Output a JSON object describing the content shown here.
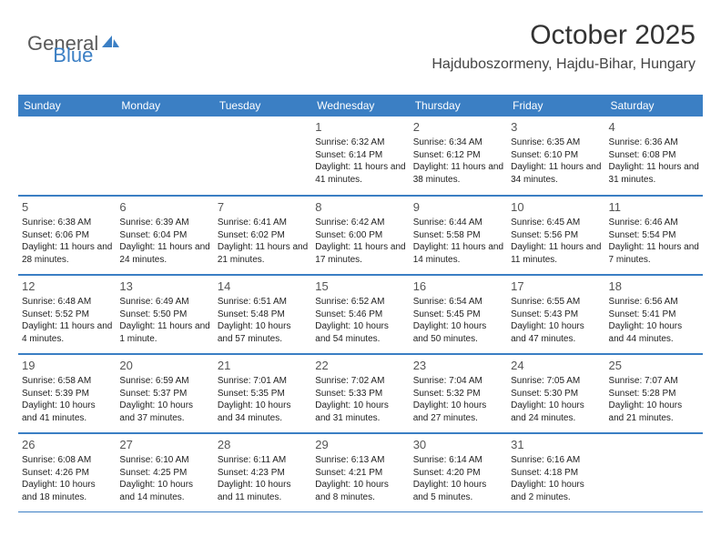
{
  "logo": {
    "part1": "General",
    "part2": "Blue"
  },
  "title": "October 2025",
  "location": "Hajduboszormeny, Hajdu-Bihar, Hungary",
  "header_bg": "#3b7fc4",
  "border_color": "#3b7fc4",
  "dayNames": [
    "Sunday",
    "Monday",
    "Tuesday",
    "Wednesday",
    "Thursday",
    "Friday",
    "Saturday"
  ],
  "weeks": [
    [
      {
        "n": "",
        "sr": "",
        "ss": "",
        "dl": ""
      },
      {
        "n": "",
        "sr": "",
        "ss": "",
        "dl": ""
      },
      {
        "n": "",
        "sr": "",
        "ss": "",
        "dl": ""
      },
      {
        "n": "1",
        "sr": "Sunrise: 6:32 AM",
        "ss": "Sunset: 6:14 PM",
        "dl": "Daylight: 11 hours and 41 minutes."
      },
      {
        "n": "2",
        "sr": "Sunrise: 6:34 AM",
        "ss": "Sunset: 6:12 PM",
        "dl": "Daylight: 11 hours and 38 minutes."
      },
      {
        "n": "3",
        "sr": "Sunrise: 6:35 AM",
        "ss": "Sunset: 6:10 PM",
        "dl": "Daylight: 11 hours and 34 minutes."
      },
      {
        "n": "4",
        "sr": "Sunrise: 6:36 AM",
        "ss": "Sunset: 6:08 PM",
        "dl": "Daylight: 11 hours and 31 minutes."
      }
    ],
    [
      {
        "n": "5",
        "sr": "Sunrise: 6:38 AM",
        "ss": "Sunset: 6:06 PM",
        "dl": "Daylight: 11 hours and 28 minutes."
      },
      {
        "n": "6",
        "sr": "Sunrise: 6:39 AM",
        "ss": "Sunset: 6:04 PM",
        "dl": "Daylight: 11 hours and 24 minutes."
      },
      {
        "n": "7",
        "sr": "Sunrise: 6:41 AM",
        "ss": "Sunset: 6:02 PM",
        "dl": "Daylight: 11 hours and 21 minutes."
      },
      {
        "n": "8",
        "sr": "Sunrise: 6:42 AM",
        "ss": "Sunset: 6:00 PM",
        "dl": "Daylight: 11 hours and 17 minutes."
      },
      {
        "n": "9",
        "sr": "Sunrise: 6:44 AM",
        "ss": "Sunset: 5:58 PM",
        "dl": "Daylight: 11 hours and 14 minutes."
      },
      {
        "n": "10",
        "sr": "Sunrise: 6:45 AM",
        "ss": "Sunset: 5:56 PM",
        "dl": "Daylight: 11 hours and 11 minutes."
      },
      {
        "n": "11",
        "sr": "Sunrise: 6:46 AM",
        "ss": "Sunset: 5:54 PM",
        "dl": "Daylight: 11 hours and 7 minutes."
      }
    ],
    [
      {
        "n": "12",
        "sr": "Sunrise: 6:48 AM",
        "ss": "Sunset: 5:52 PM",
        "dl": "Daylight: 11 hours and 4 minutes."
      },
      {
        "n": "13",
        "sr": "Sunrise: 6:49 AM",
        "ss": "Sunset: 5:50 PM",
        "dl": "Daylight: 11 hours and 1 minute."
      },
      {
        "n": "14",
        "sr": "Sunrise: 6:51 AM",
        "ss": "Sunset: 5:48 PM",
        "dl": "Daylight: 10 hours and 57 minutes."
      },
      {
        "n": "15",
        "sr": "Sunrise: 6:52 AM",
        "ss": "Sunset: 5:46 PM",
        "dl": "Daylight: 10 hours and 54 minutes."
      },
      {
        "n": "16",
        "sr": "Sunrise: 6:54 AM",
        "ss": "Sunset: 5:45 PM",
        "dl": "Daylight: 10 hours and 50 minutes."
      },
      {
        "n": "17",
        "sr": "Sunrise: 6:55 AM",
        "ss": "Sunset: 5:43 PM",
        "dl": "Daylight: 10 hours and 47 minutes."
      },
      {
        "n": "18",
        "sr": "Sunrise: 6:56 AM",
        "ss": "Sunset: 5:41 PM",
        "dl": "Daylight: 10 hours and 44 minutes."
      }
    ],
    [
      {
        "n": "19",
        "sr": "Sunrise: 6:58 AM",
        "ss": "Sunset: 5:39 PM",
        "dl": "Daylight: 10 hours and 41 minutes."
      },
      {
        "n": "20",
        "sr": "Sunrise: 6:59 AM",
        "ss": "Sunset: 5:37 PM",
        "dl": "Daylight: 10 hours and 37 minutes."
      },
      {
        "n": "21",
        "sr": "Sunrise: 7:01 AM",
        "ss": "Sunset: 5:35 PM",
        "dl": "Daylight: 10 hours and 34 minutes."
      },
      {
        "n": "22",
        "sr": "Sunrise: 7:02 AM",
        "ss": "Sunset: 5:33 PM",
        "dl": "Daylight: 10 hours and 31 minutes."
      },
      {
        "n": "23",
        "sr": "Sunrise: 7:04 AM",
        "ss": "Sunset: 5:32 PM",
        "dl": "Daylight: 10 hours and 27 minutes."
      },
      {
        "n": "24",
        "sr": "Sunrise: 7:05 AM",
        "ss": "Sunset: 5:30 PM",
        "dl": "Daylight: 10 hours and 24 minutes."
      },
      {
        "n": "25",
        "sr": "Sunrise: 7:07 AM",
        "ss": "Sunset: 5:28 PM",
        "dl": "Daylight: 10 hours and 21 minutes."
      }
    ],
    [
      {
        "n": "26",
        "sr": "Sunrise: 6:08 AM",
        "ss": "Sunset: 4:26 PM",
        "dl": "Daylight: 10 hours and 18 minutes."
      },
      {
        "n": "27",
        "sr": "Sunrise: 6:10 AM",
        "ss": "Sunset: 4:25 PM",
        "dl": "Daylight: 10 hours and 14 minutes."
      },
      {
        "n": "28",
        "sr": "Sunrise: 6:11 AM",
        "ss": "Sunset: 4:23 PM",
        "dl": "Daylight: 10 hours and 11 minutes."
      },
      {
        "n": "29",
        "sr": "Sunrise: 6:13 AM",
        "ss": "Sunset: 4:21 PM",
        "dl": "Daylight: 10 hours and 8 minutes."
      },
      {
        "n": "30",
        "sr": "Sunrise: 6:14 AM",
        "ss": "Sunset: 4:20 PM",
        "dl": "Daylight: 10 hours and 5 minutes."
      },
      {
        "n": "31",
        "sr": "Sunrise: 6:16 AM",
        "ss": "Sunset: 4:18 PM",
        "dl": "Daylight: 10 hours and 2 minutes."
      },
      {
        "n": "",
        "sr": "",
        "ss": "",
        "dl": ""
      }
    ]
  ]
}
